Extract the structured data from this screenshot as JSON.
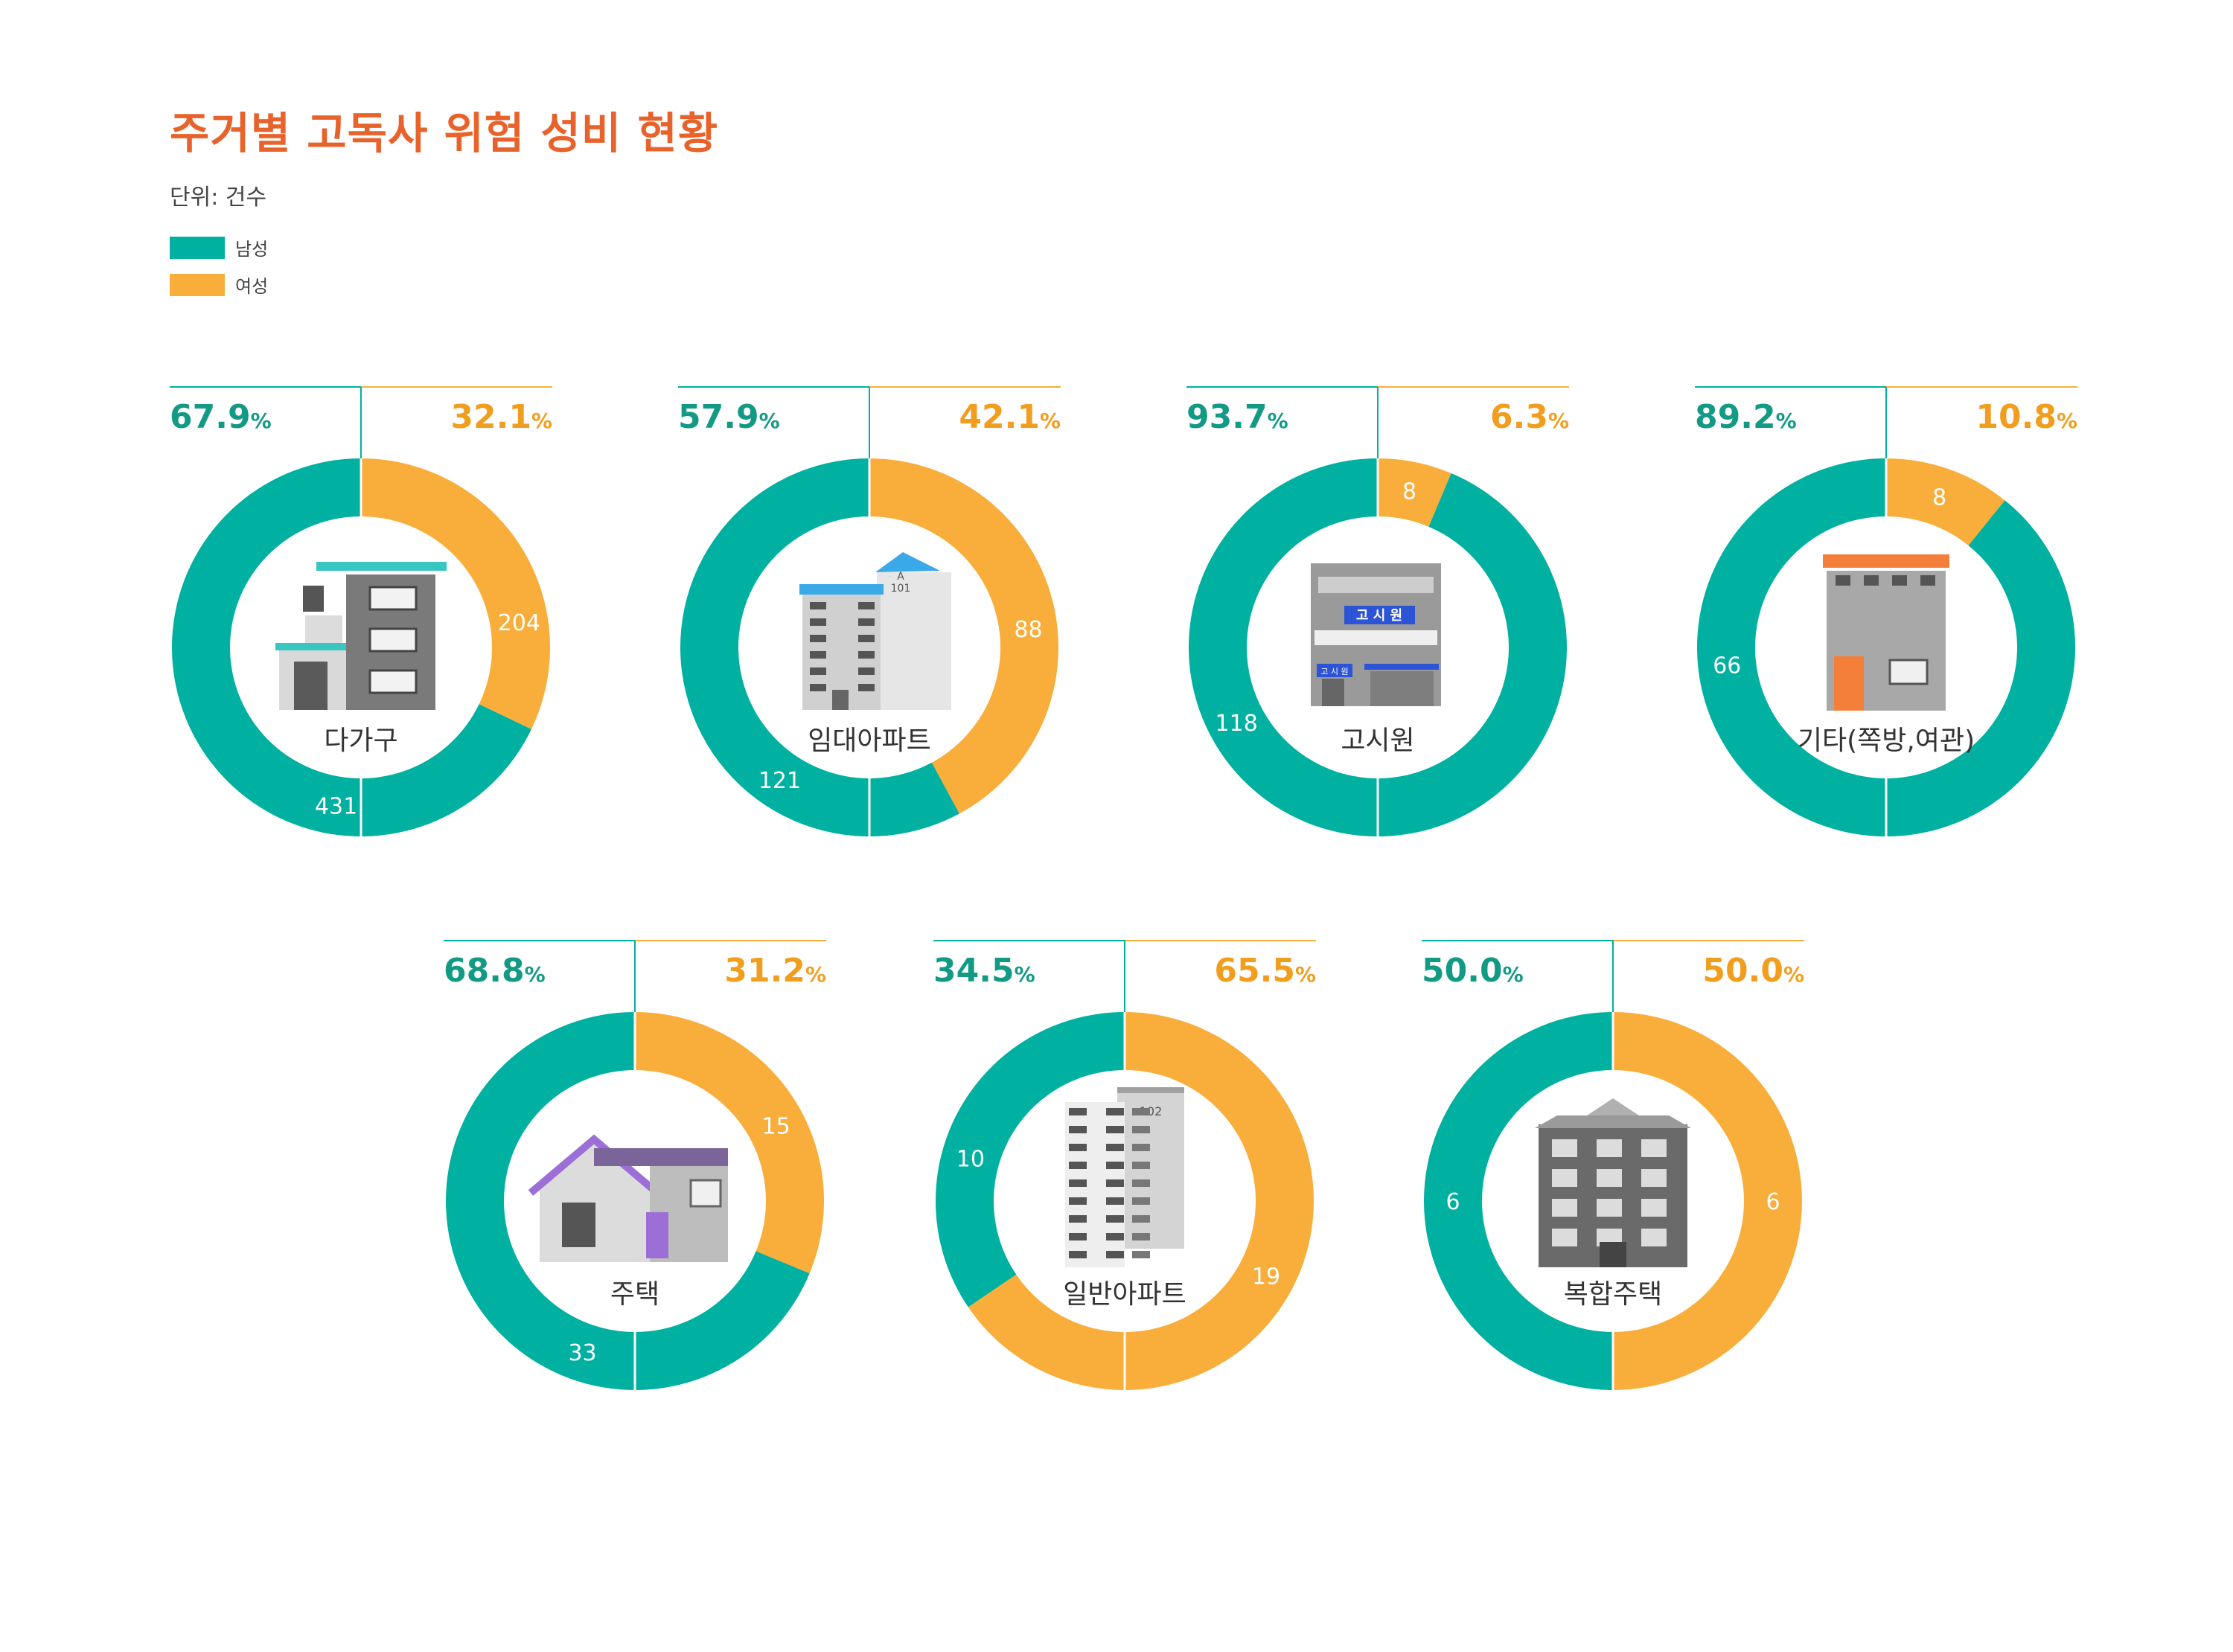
{
  "title": "주거별 고독사 위험 성비 현황",
  "unit": "단위: 건수",
  "legend": [
    {
      "label": "남성",
      "color": "#00b0a0"
    },
    {
      "label": "여성",
      "color": "#f9ae3b"
    }
  ],
  "colors": {
    "male": "#00b0a0",
    "female": "#f9ae3b",
    "male_text": "#139a85",
    "female_text": "#f19e1f"
  },
  "chart_data": {
    "type": "donut",
    "series": [
      {
        "name": "남성"
      },
      {
        "name": "여성"
      }
    ],
    "items": [
      {
        "category": "다가구",
        "male": 431,
        "female": 204,
        "male_pct": "67.9",
        "female_pct": "32.1",
        "icon": "multi-family-house-icon"
      },
      {
        "category": "임대아파트",
        "male": 121,
        "female": 88,
        "male_pct": "57.9",
        "female_pct": "42.1",
        "icon": "rental-apartment-icon"
      },
      {
        "category": "고시원",
        "male": 118,
        "female": 8,
        "male_pct": "93.7",
        "female_pct": "6.3",
        "icon": "gosiwon-building-icon"
      },
      {
        "category": "기타(쪽방,여관)",
        "male": 66,
        "female": 8,
        "male_pct": "89.2",
        "female_pct": "10.8",
        "icon": "inn-building-icon"
      },
      {
        "category": "주택",
        "male": 33,
        "female": 15,
        "male_pct": "68.8",
        "female_pct": "31.2",
        "icon": "house-icon"
      },
      {
        "category": "일반아파트",
        "male": 10,
        "female": 19,
        "male_pct": "34.5",
        "female_pct": "65.5",
        "icon": "apartment-icon"
      },
      {
        "category": "복합주택",
        "male": 6,
        "female": 6,
        "male_pct": "50.0",
        "female_pct": "50.0",
        "icon": "complex-housing-icon"
      }
    ],
    "icon_labels": {
      "rental_apartment": [
        "A",
        "101"
      ],
      "gosiwon": [
        "고 시 원",
        "고 시 원"
      ],
      "apartment": "102"
    },
    "percent_sign": "%"
  }
}
